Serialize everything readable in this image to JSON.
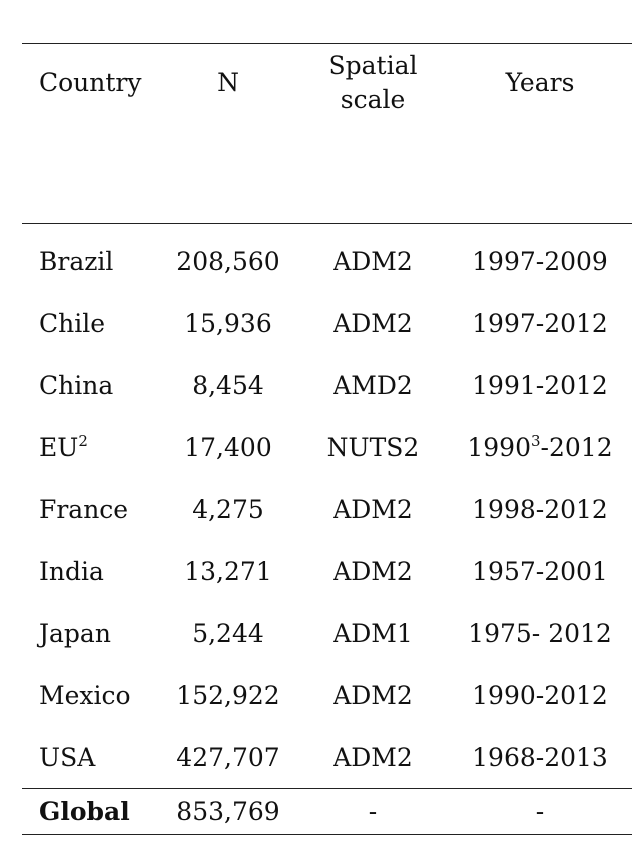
{
  "table": {
    "headers": {
      "country": "Country",
      "n": "N",
      "scale_line1": "Spatial",
      "scale_line2": "scale",
      "years": "Years"
    },
    "rows": [
      {
        "country": "Brazil",
        "country_sup": "",
        "n": "208,560",
        "scale": "ADM2",
        "years": "1997-2009",
        "years_sup": "",
        "years_rest": ""
      },
      {
        "country": "Chile",
        "country_sup": "",
        "n": "15,936",
        "scale": "ADM2",
        "years": "1997-2012",
        "years_sup": "",
        "years_rest": ""
      },
      {
        "country": "China",
        "country_sup": "",
        "n": "8,454",
        "scale": "AMD2",
        "years": "1991-2012",
        "years_sup": "",
        "years_rest": ""
      },
      {
        "country": "EU",
        "country_sup": "2",
        "n": "17,400",
        "scale": "NUTS2",
        "years": "1990",
        "years_sup": "3",
        "years_rest": "-2012"
      },
      {
        "country": "France",
        "country_sup": "",
        "n": "4,275",
        "scale": "ADM2",
        "years": "1998-2012",
        "years_sup": "",
        "years_rest": ""
      },
      {
        "country": "India",
        "country_sup": "",
        "n": "13,271",
        "scale": "ADM2",
        "years": "1957-2001",
        "years_sup": "",
        "years_rest": ""
      },
      {
        "country": "Japan",
        "country_sup": "",
        "n": "5,244",
        "scale": "ADM1",
        "years": "1975- 2012",
        "years_sup": "",
        "years_rest": ""
      },
      {
        "country": "Mexico",
        "country_sup": "",
        "n": "152,922",
        "scale": "ADM2",
        "years": "1990-2012",
        "years_sup": "",
        "years_rest": ""
      },
      {
        "country": "USA",
        "country_sup": "",
        "n": "427,707",
        "scale": "ADM2",
        "years": "1968-2013",
        "years_sup": "",
        "years_rest": ""
      }
    ],
    "total": {
      "country": "Global",
      "n": "853,769",
      "scale": "-",
      "years": "-"
    }
  }
}
